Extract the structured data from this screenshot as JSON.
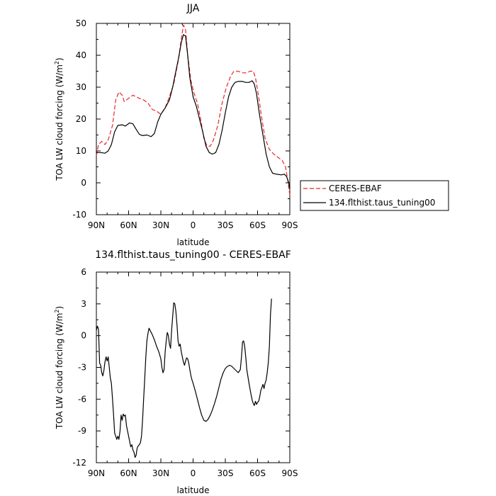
{
  "chart_data": [
    {
      "type": "line",
      "title": "JJA",
      "xlabel": "latitude",
      "ylabel_main": "TOA LW cloud forcing (W/m",
      "ylabel_sup": "2",
      "ylabel_close": ")",
      "xlim": [
        90,
        -90
      ],
      "ylim": [
        -10,
        50
      ],
      "x_ticks": [
        90,
        60,
        30,
        0,
        -30,
        -60,
        -90
      ],
      "x_tick_labels": [
        "90N",
        "60N",
        "30N",
        "0",
        "30S",
        "60S",
        "90S"
      ],
      "y_ticks": [
        -10,
        0,
        10,
        20,
        30,
        40,
        50
      ],
      "y_tick_labels": [
        "-10",
        "0",
        "10",
        "20",
        "30",
        "40",
        "50"
      ],
      "legend": {
        "placement": "right",
        "entries": [
          "CERES-EBAF",
          "134.flthist.taus_tuning00"
        ]
      },
      "series": [
        {
          "name": "CERES-EBAF",
          "color": "#e8262b",
          "dash": true,
          "points": [
            [
              90,
              8.5
            ],
            [
              88,
              12
            ],
            [
              85,
              13
            ],
            [
              82,
              12
            ],
            [
              79,
              13.5
            ],
            [
              75,
              18
            ],
            [
              72,
              26
            ],
            [
              69,
              28.5
            ],
            [
              66,
              27.5
            ],
            [
              64,
              25.5
            ],
            [
              60,
              26.5
            ],
            [
              56,
              27.5
            ],
            [
              50,
              26.5
            ],
            [
              46,
              26
            ],
            [
              42,
              25
            ],
            [
              38,
              23
            ],
            [
              34,
              22.5
            ],
            [
              30,
              21.5
            ],
            [
              26,
              23.5
            ],
            [
              22,
              27
            ],
            [
              18,
              31
            ],
            [
              14,
              38
            ],
            [
              11,
              45
            ],
            [
              9,
              49.5
            ],
            [
              7,
              48
            ],
            [
              5,
              40
            ],
            [
              2,
              32
            ],
            [
              -1,
              28
            ],
            [
              -4,
              25
            ],
            [
              -7,
              20
            ],
            [
              -10,
              14
            ],
            [
              -13,
              11.5
            ],
            [
              -16,
              11.5
            ],
            [
              -19,
              13.5
            ],
            [
              -23,
              18
            ],
            [
              -27,
              25
            ],
            [
              -31,
              30
            ],
            [
              -35,
              33.5
            ],
            [
              -38,
              35
            ],
            [
              -42,
              35
            ],
            [
              -46,
              34.5
            ],
            [
              -50,
              34.5
            ],
            [
              -53,
              35
            ],
            [
              -56,
              35
            ],
            [
              -58,
              33
            ],
            [
              -61,
              27
            ],
            [
              -64,
              20
            ],
            [
              -67,
              14
            ],
            [
              -71,
              10.5
            ],
            [
              -75,
              9
            ],
            [
              -79,
              8
            ],
            [
              -83,
              7
            ],
            [
              -86,
              5
            ],
            [
              -88,
              1
            ],
            [
              -90,
              -4
            ]
          ]
        },
        {
          "name": "134.flthist.taus_tuning00",
          "color": "#000000",
          "dash": false,
          "points": [
            [
              90,
              9.5
            ],
            [
              86,
              9.5
            ],
            [
              82,
              9.3
            ],
            [
              79,
              10
            ],
            [
              76,
              12
            ],
            [
              73,
              16
            ],
            [
              70,
              18
            ],
            [
              66,
              18.2
            ],
            [
              63,
              17.8
            ],
            [
              59,
              18.8
            ],
            [
              56,
              18.5
            ],
            [
              53,
              16.8
            ],
            [
              50,
              15.2
            ],
            [
              47,
              14.8
            ],
            [
              43,
              15
            ],
            [
              39,
              14.5
            ],
            [
              36,
              15.5
            ],
            [
              33,
              19
            ],
            [
              30,
              21.5
            ],
            [
              26,
              23.5
            ],
            [
              22,
              26
            ],
            [
              19,
              30
            ],
            [
              16,
              35
            ],
            [
              13,
              40
            ],
            [
              11,
              44
            ],
            [
              9,
              46.5
            ],
            [
              7,
              46
            ],
            [
              5,
              40
            ],
            [
              3,
              33
            ],
            [
              0,
              27
            ],
            [
              -3,
              24
            ],
            [
              -6,
              20
            ],
            [
              -9,
              16
            ],
            [
              -12,
              11.5
            ],
            [
              -15,
              9.5
            ],
            [
              -18,
              9
            ],
            [
              -21,
              9.5
            ],
            [
              -24,
              12
            ],
            [
              -27,
              16.5
            ],
            [
              -30,
              22
            ],
            [
              -33,
              27
            ],
            [
              -36,
              30
            ],
            [
              -39,
              31.5
            ],
            [
              -42,
              31.8
            ],
            [
              -46,
              31.8
            ],
            [
              -49,
              31.5
            ],
            [
              -52,
              31.5
            ],
            [
              -55,
              32
            ],
            [
              -57,
              31
            ],
            [
              -59,
              28
            ],
            [
              -62,
              21
            ],
            [
              -65,
              15
            ],
            [
              -68,
              9
            ],
            [
              -71,
              5
            ],
            [
              -74,
              3
            ],
            [
              -78,
              2.7
            ],
            [
              -82,
              2.5
            ],
            [
              -85,
              2.7
            ],
            [
              -87,
              2
            ],
            [
              -89,
              0
            ],
            [
              -90,
              -2
            ]
          ]
        }
      ]
    },
    {
      "type": "line",
      "title": "134.flthist.taus_tuning00 - CERES-EBAF",
      "xlabel": "latitude",
      "ylabel_main": "TOA LW cloud forcing (W/m",
      "ylabel_sup": "2",
      "ylabel_close": ")",
      "xlim": [
        90,
        -90
      ],
      "ylim": [
        -12,
        6
      ],
      "x_ticks": [
        90,
        60,
        30,
        0,
        -30,
        -60,
        -90
      ],
      "x_tick_labels": [
        "90N",
        "60N",
        "30N",
        "0",
        "30S",
        "60S",
        "90S"
      ],
      "y_ticks": [
        -12,
        -9,
        -6,
        -3,
        0,
        3,
        6
      ],
      "y_tick_labels": [
        "-12",
        "-9",
        "-6",
        "-3",
        "0",
        "3",
        "6"
      ],
      "series": [
        {
          "color": "#000000",
          "dash": false,
          "points": [
            [
              90,
              0.5
            ],
            [
              89,
              0.9
            ],
            [
              88,
              0.6
            ],
            [
              87,
              -2.6
            ],
            [
              86,
              -2.8
            ],
            [
              85,
              -3.5
            ],
            [
              84,
              -3.8
            ],
            [
              83,
              -3.3
            ],
            [
              82,
              -2.5
            ],
            [
              81,
              -2.0
            ],
            [
              80,
              -2.4
            ],
            [
              79,
              -2.0
            ],
            [
              78,
              -3.0
            ],
            [
              77,
              -4.0
            ],
            [
              76,
              -4.5
            ],
            [
              75,
              -6.0
            ],
            [
              74,
              -7.5
            ],
            [
              73,
              -9.2
            ],
            [
              72,
              -9.5
            ],
            [
              71,
              -9.8
            ],
            [
              70,
              -9.5
            ],
            [
              69,
              -9.8
            ],
            [
              68,
              -9.0
            ],
            [
              67,
              -7.5
            ],
            [
              66,
              -8.0
            ],
            [
              65,
              -7.4
            ],
            [
              64,
              -7.6
            ],
            [
              63,
              -7.5
            ],
            [
              62,
              -8.5
            ],
            [
              61,
              -9.0
            ],
            [
              60,
              -9.5
            ],
            [
              59,
              -10.0
            ],
            [
              58,
              -10.5
            ],
            [
              57,
              -10.3
            ],
            [
              56,
              -10.8
            ],
            [
              55,
              -11.0
            ],
            [
              54,
              -11.5
            ],
            [
              53,
              -11.3
            ],
            [
              52,
              -10.6
            ],
            [
              51,
              -10.4
            ],
            [
              50,
              -10.3
            ],
            [
              49,
              -10.1
            ],
            [
              48,
              -9.5
            ],
            [
              47,
              -8.0
            ],
            [
              46,
              -6.0
            ],
            [
              45,
              -4.0
            ],
            [
              44,
              -2.0
            ],
            [
              43,
              -0.5
            ],
            [
              42,
              0.2
            ],
            [
              41,
              0.7
            ],
            [
              40,
              0.5
            ],
            [
              39,
              0.3
            ],
            [
              38,
              0.1
            ],
            [
              36,
              -0.4
            ],
            [
              34,
              -1.0
            ],
            [
              32,
              -1.5
            ],
            [
              30,
              -2.2
            ],
            [
              29,
              -3.0
            ],
            [
              28,
              -3.5
            ],
            [
              27,
              -3.2
            ],
            [
              26,
              -1.5
            ],
            [
              25,
              -0.5
            ],
            [
              24,
              0.3
            ],
            [
              23,
              0.0
            ],
            [
              22,
              -0.8
            ],
            [
              21,
              -1.2
            ],
            [
              20,
              0.5
            ],
            [
              19,
              1.8
            ],
            [
              18,
              3.1
            ],
            [
              17,
              3.0
            ],
            [
              16,
              2.3
            ],
            [
              15,
              1.0
            ],
            [
              14,
              -0.5
            ],
            [
              13,
              -1.0
            ],
            [
              12,
              -0.8
            ],
            [
              11,
              -1.5
            ],
            [
              10,
              -2.0
            ],
            [
              9,
              -2.5
            ],
            [
              8,
              -2.8
            ],
            [
              7,
              -2.4
            ],
            [
              6,
              -2.1
            ],
            [
              5,
              -2.2
            ],
            [
              4,
              -2.6
            ],
            [
              3,
              -3.2
            ],
            [
              2,
              -3.8
            ],
            [
              1,
              -4.2
            ],
            [
              0,
              -4.5
            ],
            [
              -2,
              -5.2
            ],
            [
              -4,
              -6.0
            ],
            [
              -6,
              -6.8
            ],
            [
              -8,
              -7.5
            ],
            [
              -10,
              -8.0
            ],
            [
              -12,
              -8.1
            ],
            [
              -14,
              -7.9
            ],
            [
              -16,
              -7.5
            ],
            [
              -18,
              -7.0
            ],
            [
              -20,
              -6.4
            ],
            [
              -22,
              -5.7
            ],
            [
              -24,
              -4.9
            ],
            [
              -26,
              -4.1
            ],
            [
              -28,
              -3.5
            ],
            [
              -30,
              -3.1
            ],
            [
              -32,
              -2.9
            ],
            [
              -34,
              -2.8
            ],
            [
              -36,
              -2.9
            ],
            [
              -38,
              -3.1
            ],
            [
              -40,
              -3.3
            ],
            [
              -42,
              -3.5
            ],
            [
              -44,
              -3.2
            ],
            [
              -45,
              -2.0
            ],
            [
              -46,
              -0.6
            ],
            [
              -47,
              -0.5
            ],
            [
              -48,
              -1.0
            ],
            [
              -49,
              -2.0
            ],
            [
              -50,
              -3.2
            ],
            [
              -52,
              -4.5
            ],
            [
              -54,
              -5.6
            ],
            [
              -55,
              -6.1
            ],
            [
              -56,
              -6.4
            ],
            [
              -57,
              -6.6
            ],
            [
              -58,
              -6.2
            ],
            [
              -59,
              -6.5
            ],
            [
              -60,
              -6.3
            ],
            [
              -61,
              -6.2
            ],
            [
              -62,
              -5.8
            ],
            [
              -63,
              -5.2
            ],
            [
              -64,
              -4.9
            ],
            [
              -65,
              -4.6
            ],
            [
              -66,
              -5.0
            ],
            [
              -67,
              -4.5
            ],
            [
              -68,
              -4.2
            ],
            [
              -69,
              -3.5
            ],
            [
              -70,
              -2.5
            ],
            [
              -71,
              -1.0
            ],
            [
              -72,
              2.0
            ],
            [
              -73,
              3.5
            ]
          ]
        }
      ]
    }
  ]
}
